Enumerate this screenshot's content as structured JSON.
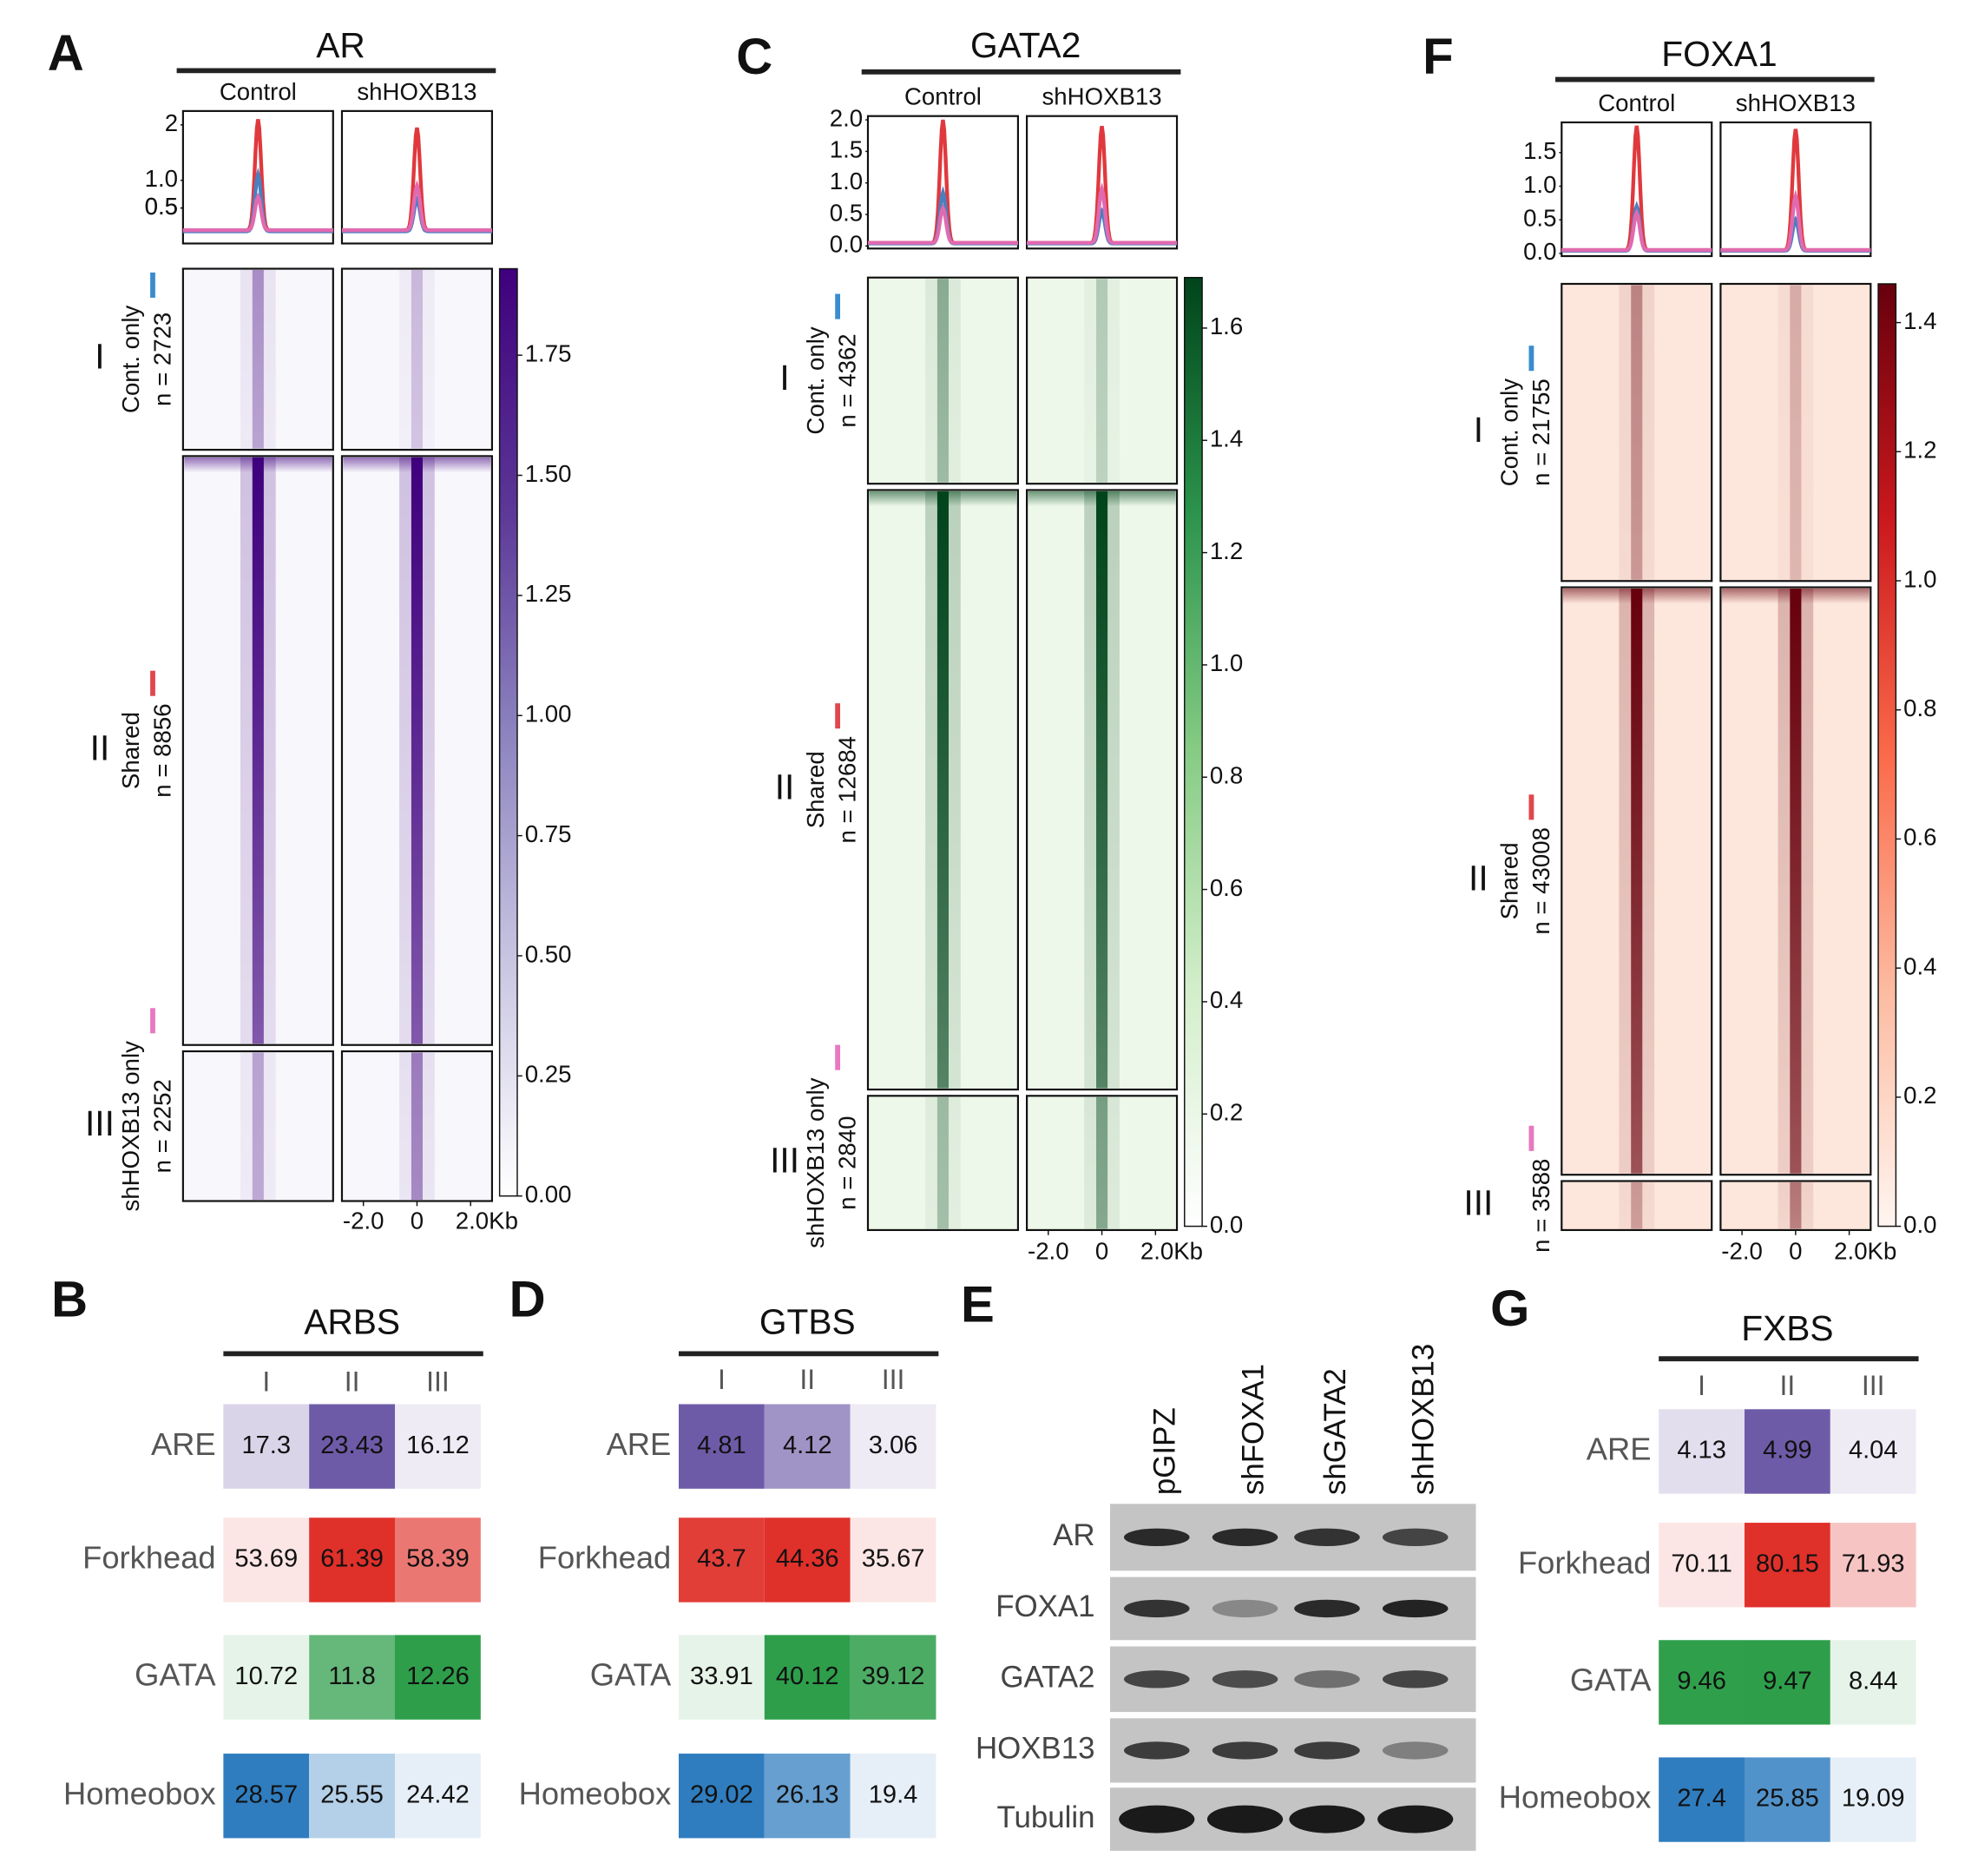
{
  "heatmap_panels": [
    {
      "letter": "A",
      "protein": "AR",
      "conditions": [
        "Control",
        "shHOXB13"
      ],
      "profile": {
        "ylim": [
          -0.14,
          2.25
        ],
        "yticks": [
          0.5,
          {
            "value": 1,
            "label": "1.0"
          },
          0.5,
          2.0
        ],
        "series": [
          [
            {
              "color": "#e0393d",
              "peak": 2.1,
              "base": 0.1
            },
            {
              "color": "#4a7fc0",
              "peak": 1.1,
              "base": 0.08
            },
            {
              "color": "#e06ab0",
              "peak": 0.7,
              "base": 0.1
            }
          ],
          [
            {
              "color": "#e0393d",
              "peak": 1.95,
              "base": 0.1
            },
            {
              "color": "#4a7fc0",
              "peak": 0.65,
              "base": 0.08
            },
            {
              "color": "#e06ab0",
              "peak": 0.9,
              "base": 0.1
            }
          ]
        ]
      },
      "clusters": [
        {
          "roman": "I",
          "name": "Cont. only",
          "n": {
            "value": 2723,
            "label": "n = 2723"
          },
          "color": "#3a8ccf"
        },
        {
          "roman": "II",
          "name": "Shared",
          "n": {
            "value": 8856,
            "label": "n = 8856"
          },
          "color": "#e0474c"
        },
        {
          "roman": "III",
          "name": "shHOXB13 only",
          "n": {
            "value": 2252,
            "label": "n = 2252"
          },
          "color": "#e878c0"
        }
      ],
      "xlim": [
        -2.8,
        2.8
      ],
      "xticks": [
        {
          "value": -2,
          "label": "-2.0"
        },
        0,
        {
          "value": 2,
          "label": "2.0Kb"
        }
      ],
      "heat_colors": {
        "background": "#f8f7fc",
        "signal": "#3f007d"
      },
      "colorbar": {
        "lim": [
          0,
          1.93
        ],
        "colors": [
          "#ffffff",
          "#c9c6e2",
          "#8c83bf",
          "#5a3596",
          "#3f007d"
        ],
        "ticks": [
          {
            "value": 0,
            "label": "0.00"
          },
          0.25,
          {
            "value": 0.5,
            "label": "0.50"
          },
          0.75,
          {
            "value": 1,
            "label": "1.00"
          },
          1.25,
          {
            "value": 1.5,
            "label": "1.50"
          },
          1.75
        ]
      }
    },
    {
      "letter": "C",
      "protein": "GATA2",
      "conditions": [
        "Control",
        "shHOXB13"
      ],
      "profile": {
        "ylim": [
          -0.04,
          2.06
        ],
        "yticks": [
          {
            "value": 0,
            "label": "0.0"
          },
          0.5,
          {
            "value": 1,
            "label": "1.0"
          },
          1.5,
          {
            "value": 2,
            "label": "2.0"
          }
        ],
        "series": [
          [
            {
              "color": "#e0393d",
              "peak": 2.0,
              "base": 0.05
            },
            {
              "color": "#4a7fc0",
              "peak": 0.85,
              "base": 0.04
            },
            {
              "color": "#e06ab0",
              "peak": 0.6,
              "base": 0.05
            }
          ],
          [
            {
              "color": "#e0393d",
              "peak": 1.9,
              "base": 0.05
            },
            {
              "color": "#4a7fc0",
              "peak": 0.55,
              "base": 0.04
            },
            {
              "color": "#e06ab0",
              "peak": 0.9,
              "base": 0.05
            }
          ]
        ]
      },
      "clusters": [
        {
          "roman": "I",
          "name": "Cont. only",
          "n": {
            "value": 4362,
            "label": "n = 4362"
          },
          "color": "#3a8ccf"
        },
        {
          "roman": "II",
          "name": "Shared",
          "n": {
            "value": 12684,
            "label": "n = 12684"
          },
          "color": "#e0474c"
        },
        {
          "roman": "III",
          "name": "shHOXB13 only",
          "n": {
            "value": 2840,
            "label": "n = 2840"
          },
          "color": "#e878c0"
        }
      ],
      "xlim": [
        -2.8,
        2.8
      ],
      "xticks": [
        {
          "value": -2,
          "label": "-2.0"
        },
        0,
        {
          "value": 2,
          "label": "2.0Kb"
        }
      ],
      "heat_colors": {
        "background": "#eef8ea",
        "signal": "#00441b"
      },
      "colorbar": {
        "lim": [
          0,
          1.69
        ],
        "colors": [
          "#ffffff",
          "#d3eecb",
          "#86cc84",
          "#2c944c",
          "#00441b"
        ],
        "ticks": [
          {
            "value": 0,
            "label": "0.0"
          },
          0.2,
          0.4,
          0.6,
          0.8,
          {
            "value": 1,
            "label": "1.0"
          },
          1.2,
          1.4,
          1.6
        ]
      }
    },
    {
      "letter": "F",
      "protein": "FOXA1",
      "conditions": [
        "Control",
        "shHOXB13"
      ],
      "profile": {
        "ylim": [
          -0.04,
          1.95
        ],
        "yticks": [
          {
            "value": 0,
            "label": "0.0"
          },
          0.5,
          {
            "value": 1,
            "label": "1.0"
          },
          1.5
        ],
        "series": [
          [
            {
              "color": "#e0393d",
              "peak": 1.9,
              "base": 0.05
            },
            {
              "color": "#4a7fc0",
              "peak": 0.7,
              "base": 0.04
            },
            {
              "color": "#e06ab0",
              "peak": 0.6,
              "base": 0.05
            }
          ],
          [
            {
              "color": "#e0393d",
              "peak": 1.85,
              "base": 0.05
            },
            {
              "color": "#4a7fc0",
              "peak": 0.5,
              "base": 0.04
            },
            {
              "color": "#e06ab0",
              "peak": 0.85,
              "base": 0.05
            }
          ]
        ]
      },
      "clusters": [
        {
          "roman": "I",
          "name": "Cont. only",
          "n": {
            "value": 21755,
            "label": "n = 21755"
          },
          "color": "#3a8ccf"
        },
        {
          "roman": "II",
          "name": "Shared",
          "n": {
            "value": 43008,
            "label": "n = 43008"
          },
          "color": "#e0474c"
        },
        {
          "roman": "III",
          "n": {
            "value": 3588,
            "label": "n = 3588"
          },
          "color": "#e878c0"
        }
      ],
      "xlim": [
        -2.8,
        2.8
      ],
      "xticks": [
        {
          "value": -2,
          "label": "-2.0"
        },
        0,
        {
          "value": 2,
          "label": "2.0Kb"
        }
      ],
      "heat_colors": {
        "background": "#fde6dc",
        "signal": "#67000d"
      },
      "colorbar": {
        "lim": [
          0,
          1.46
        ],
        "colors": [
          "#fff5f0",
          "#fcbba1",
          "#fb6a4a",
          "#cb181d",
          "#67000d"
        ],
        "ticks": [
          {
            "value": 0,
            "label": "0.0"
          },
          0.2,
          0.4,
          0.6,
          0.8,
          {
            "value": 1,
            "label": "1.0"
          },
          1.2,
          1.4
        ]
      }
    }
  ],
  "tables": [
    {
      "letter": "B",
      "title": "ARBS",
      "columns": [
        "I",
        "II",
        "III"
      ],
      "rows": [
        {
          "motif": "ARE",
          "color": "#6e5ba8",
          "values": [
            17.3,
            23.43,
            16.12
          ]
        },
        {
          "motif": "Forkhead",
          "color": "#e0302a",
          "values": [
            53.69,
            61.39,
            58.39
          ]
        },
        {
          "motif": "GATA",
          "color": "#2e9e4a",
          "values": [
            10.72,
            11.8,
            12.26
          ]
        },
        {
          "motif": "Homeobox",
          "color": "#2f7dbf",
          "values": [
            28.57,
            25.55,
            24.42
          ]
        }
      ]
    },
    {
      "letter": "D",
      "title": "GTBS",
      "columns": [
        "I",
        "II",
        "III"
      ],
      "rows": [
        {
          "motif": "ARE",
          "color": "#6e5ba8",
          "values": [
            4.81,
            4.12,
            3.06
          ]
        },
        {
          "motif": "Forkhead",
          "color": "#e0302a",
          "values": [
            43.7,
            44.36,
            35.67
          ]
        },
        {
          "motif": "GATA",
          "color": "#2e9e4a",
          "values": [
            33.91,
            40.12,
            39.12
          ]
        },
        {
          "motif": "Homeobox",
          "color": "#2f7dbf",
          "values": [
            29.02,
            26.13,
            19.4
          ]
        }
      ]
    },
    {
      "letter": "G",
      "title": "FXBS",
      "columns": [
        "I",
        "II",
        "III"
      ],
      "rows": [
        {
          "motif": "ARE",
          "color": "#6e5ba8",
          "values": [
            4.13,
            4.99,
            4.04
          ]
        },
        {
          "motif": "Forkhead",
          "color": "#e0302a",
          "values": [
            70.11,
            80.15,
            71.93
          ]
        },
        {
          "motif": "GATA",
          "color": "#2e9e4a",
          "values": [
            9.46,
            9.47,
            8.44
          ]
        },
        {
          "motif": "Homeobox",
          "color": "#2f7dbf",
          "values": [
            27.4,
            25.85,
            19.09
          ]
        }
      ]
    }
  ],
  "blot": {
    "letter": "E",
    "lanes": [
      "pGIPZ",
      "shFOXA1",
      "shGATA2",
      "shHOXB13"
    ],
    "rows": [
      {
        "protein": "AR",
        "bands": [
          0.9,
          0.9,
          0.85,
          0.75
        ]
      },
      {
        "protein": "FOXA1",
        "bands": [
          0.85,
          0.35,
          0.9,
          0.95
        ]
      },
      {
        "protein": "GATA2",
        "bands": [
          0.75,
          0.7,
          0.5,
          0.75
        ]
      },
      {
        "protein": "HOXB13",
        "bands": [
          0.8,
          0.8,
          0.8,
          0.4
        ]
      },
      {
        "protein": "Tubulin",
        "bands": [
          1,
          1,
          1,
          1
        ]
      }
    ]
  }
}
